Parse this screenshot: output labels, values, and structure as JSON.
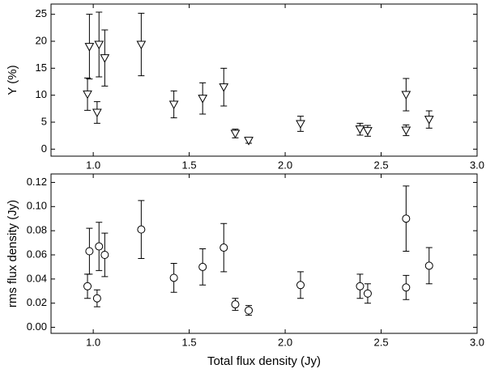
{
  "chart_data": [
    {
      "type": "scatter",
      "ylabel": "Y (%)",
      "marker": "triangle-down",
      "color": "#000000",
      "x": [
        0.97,
        0.98,
        1.02,
        1.03,
        1.06,
        1.25,
        1.42,
        1.57,
        1.68,
        1.74,
        1.81,
        2.08,
        2.39,
        2.43,
        2.63,
        2.63,
        2.75
      ],
      "values": [
        10.2,
        19.0,
        6.8,
        19.4,
        16.9,
        19.4,
        8.3,
        9.4,
        11.5,
        2.9,
        1.6,
        4.7,
        3.7,
        3.4,
        10.1,
        3.5,
        5.5
      ],
      "errors": [
        3.0,
        6.0,
        2.0,
        6.0,
        5.2,
        5.8,
        2.5,
        2.9,
        3.5,
        0.8,
        0.5,
        1.4,
        1.1,
        1.0,
        3.0,
        1.0,
        1.6
      ],
      "xlim": [
        0.78,
        3.0
      ],
      "xticks": [
        {
          "value": 1,
          "label": "1.0"
        },
        1.5,
        {
          "value": 2,
          "label": "2.0"
        },
        2.5,
        {
          "value": 3,
          "label": "3.0"
        }
      ],
      "ylim": [
        -1.3,
        26.9
      ],
      "yticks": [
        0,
        5,
        10,
        15,
        20,
        25
      ]
    },
    {
      "type": "scatter",
      "ylabel": "rms flux density (Jy)",
      "xlabel": "Total flux density (Jy)",
      "marker": "circle",
      "color": "#000000",
      "x": [
        0.97,
        0.98,
        1.02,
        1.03,
        1.06,
        1.25,
        1.42,
        1.57,
        1.68,
        1.74,
        1.81,
        2.08,
        2.39,
        2.43,
        2.63,
        2.63,
        2.75
      ],
      "values": [
        0.034,
        0.063,
        0.024,
        0.067,
        0.06,
        0.081,
        0.041,
        0.05,
        0.066,
        0.019,
        0.014,
        0.035,
        0.034,
        0.028,
        0.09,
        0.033,
        0.051
      ],
      "errors": [
        0.01,
        0.019,
        0.007,
        0.02,
        0.018,
        0.024,
        0.012,
        0.015,
        0.02,
        0.005,
        0.004,
        0.011,
        0.01,
        0.008,
        0.027,
        0.01,
        0.015
      ],
      "xlim": [
        0.78,
        3.0
      ],
      "xticks": [
        {
          "value": 1,
          "label": "1.0"
        },
        1.5,
        {
          "value": 2,
          "label": "2.0"
        },
        2.5,
        {
          "value": 3,
          "label": "3.0"
        }
      ],
      "ylim": [
        -0.005,
        0.127
      ],
      "yticks": [
        {
          "value": 0,
          "label": "0.00"
        },
        0.02,
        0.04,
        0.06,
        0.08,
        {
          "value": 0.1,
          "label": "0.10"
        },
        0.12
      ]
    }
  ]
}
